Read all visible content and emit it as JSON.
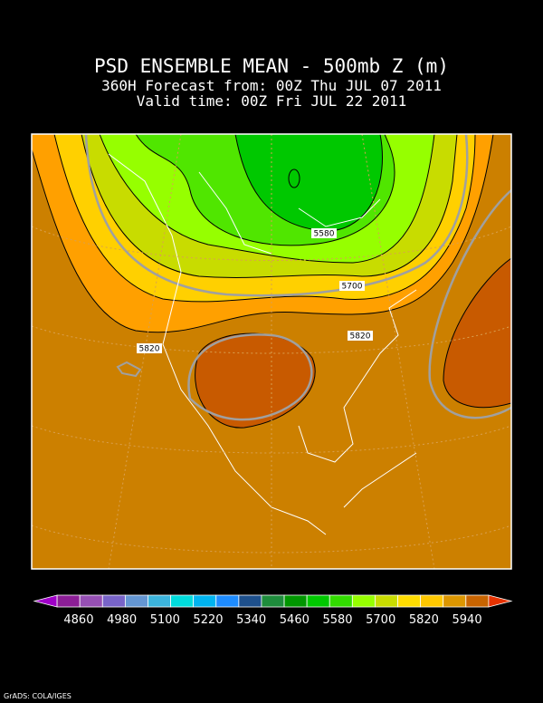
{
  "header": {
    "title": "PSD ENSEMBLE MEAN - 500mb Z (m)",
    "lines": [
      "360H Forecast from: 00Z Thu JUL 07 2011",
      "Valid time: 00Z Fri JUL 22 2011"
    ]
  },
  "contour_labels": [
    "5580",
    "5700",
    "5820",
    "5820"
  ],
  "colorbar": {
    "colors": [
      "#a000c8",
      "#8c1e96",
      "#9650b4",
      "#7864c8",
      "#6496d2",
      "#3cb4dc",
      "#00dcdc",
      "#00b4f0",
      "#1e8cff",
      "#1e508c",
      "#1e8c3c",
      "#009600",
      "#00c800",
      "#32dc00",
      "#96ff00",
      "#c8dc00",
      "#ffdc00",
      "#ffc800",
      "#dc9600",
      "#c86400",
      "#e63200"
    ],
    "labels": [
      "4860",
      "4980",
      "5100",
      "5220",
      "5340",
      "5460",
      "5580",
      "5700",
      "5820",
      "5940"
    ]
  },
  "credit": "GrADS: COLA/IGES"
}
